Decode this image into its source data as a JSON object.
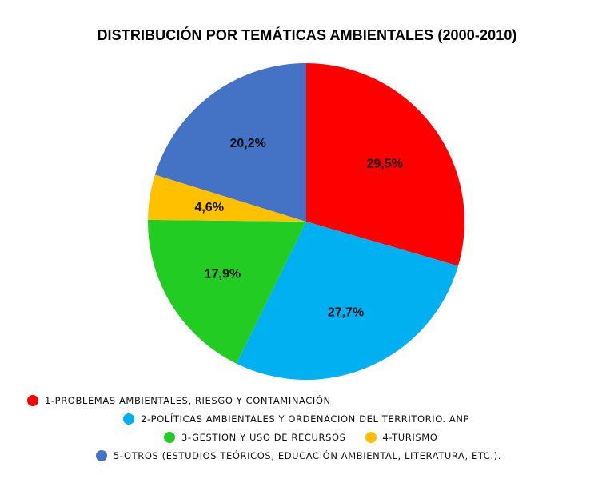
{
  "chart_data": {
    "type": "pie",
    "title": "DISTRIBUCIÓN POR TEMÁTICAS AMBIENTALES (2000-2010)",
    "legend_position": "bottom",
    "slices": [
      {
        "label": "1-PROBLEMAS AMBIENTALES, RIESGO Y CONTAMINACIÓN",
        "value": 29.5,
        "display": "29,5%",
        "color": "#ff0000"
      },
      {
        "label": "2-POLÍTICAS AMBIENTALES Y ORDENACION DEL TERRITORIO. ANP",
        "value": 27.7,
        "display": "27,7%",
        "color": "#00b0f0"
      },
      {
        "label": "3-GESTION Y USO DE RECURSOS",
        "value": 17.9,
        "display": "17,9%",
        "color": "#22cc22"
      },
      {
        "label": "4-TURISMO",
        "value": 4.6,
        "display": "4,6%",
        "color": "#ffc000"
      },
      {
        "label": "5-OTROS (ESTUDIOS TEÓRICOS, EDUCACIÓN AMBIENTAL, LITERATURA, ETC.).",
        "value": 20.2,
        "display": "20,2%",
        "color": "#4472c4"
      }
    ]
  }
}
